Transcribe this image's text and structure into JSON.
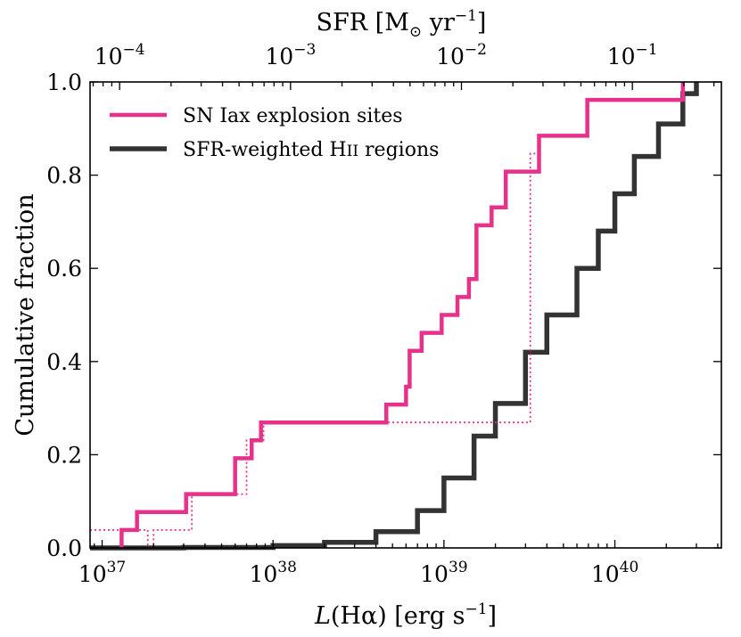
{
  "chart_data": {
    "type": "line",
    "subtype": "cumulative-step",
    "xscale": "log",
    "xlim": [
      8.5e+36,
      4.2e+40
    ],
    "ylim": [
      0.0,
      1.0
    ],
    "xlabel": "L(Hα) [erg s⁻¹]",
    "xlabel_parts": {
      "italic": "L",
      "rest": "(Hα) [erg s",
      "sup": "−1",
      "close": "]"
    },
    "ylabel": "Cumulative fraction",
    "top_xlabel": "SFR [M⊙ yr⁻¹]",
    "top_xlabel_parts": {
      "base": "SFR [M",
      "sub": "⊙",
      "mid": " yr",
      "sup": "−1",
      "close": "]"
    },
    "x_ticks": [
      {
        "value": 1e+37,
        "base": "10",
        "exp": "37"
      },
      {
        "value": 1e+38,
        "base": "10",
        "exp": "38"
      },
      {
        "value": 1e+39,
        "base": "10",
        "exp": "39"
      },
      {
        "value": 1e+40,
        "base": "10",
        "exp": "40"
      }
    ],
    "top_ticks": [
      {
        "value": 0.0001,
        "L_equiv": 1.266e+37,
        "base": "10",
        "exp": "−4"
      },
      {
        "value": 0.001,
        "L_equiv": 1.266e+38,
        "base": "10",
        "exp": "−3"
      },
      {
        "value": 0.01,
        "L_equiv": 1.266e+39,
        "base": "10",
        "exp": "−2"
      },
      {
        "value": 0.1,
        "L_equiv": 1.266e+40,
        "base": "10",
        "exp": "−1"
      }
    ],
    "y_ticks": [
      "0.0",
      "0.2",
      "0.4",
      "0.6",
      "0.8",
      "1.0"
    ],
    "legend": {
      "position": "top-left",
      "entries": [
        "SN Iax explosion sites",
        "SFR-weighted HII regions"
      ],
      "entry_parts": [
        {
          "text": "SN Iax explosion sites"
        },
        {
          "text": "SFR-weighted H",
          "smallcaps": "II",
          "tail": " regions"
        }
      ]
    },
    "series": [
      {
        "name": "SN Iax explosion sites",
        "color": "#e8318a",
        "style": "step-solid",
        "x": [
          1.3e+37,
          1.6e+37,
          3.1e+37,
          6e+37,
          7.5e+37,
          8.5e+37,
          9.1e+37,
          4.6e+38,
          6e+38,
          6.3e+38,
          7.4e+38,
          9.7e+38,
          1.2e+39,
          1.4e+39,
          1.55e+39,
          1.9e+39,
          2.3e+39,
          2.9e+39,
          3.6e+39,
          6.9e+39,
          2.5e+40
        ],
        "y": [
          0.0385,
          0.0769,
          0.1154,
          0.1923,
          0.2308,
          0.2692,
          0.2692,
          0.3077,
          0.3462,
          0.4231,
          0.4615,
          0.5,
          0.5385,
          0.5769,
          0.6923,
          0.7308,
          0.8077,
          0.8077,
          0.8846,
          0.9615,
          1.0
        ]
      },
      {
        "name": "SN Iax explosion sites (alternative values)",
        "color": "#e8318a",
        "style": "step-dotted",
        "x": [
          8.5e+36,
          1.55e+37,
          1.85e+37,
          2e+37,
          2.65e+37,
          3.35e+37,
          7e+37,
          8.8e+37,
          3.2e+39,
          3.6e+39
        ],
        "y": [
          0.0385,
          0.0385,
          0.0,
          0.0385,
          0.0385,
          0.1154,
          0.2308,
          0.2692,
          0.8462,
          0.8846
        ]
      },
      {
        "name": "SFR-weighted HII regions",
        "color": "#333333",
        "style": "step-solid-thick",
        "x": [
          8.5e+36,
          3e+37,
          1e+38,
          2e+38,
          4e+38,
          7e+38,
          1e+39,
          1.5e+39,
          2e+39,
          3e+39,
          4e+39,
          6e+39,
          8e+39,
          1e+40,
          1.3e+40,
          1.8e+40,
          2.5e+40,
          3e+40
        ],
        "y": [
          0.0,
          0.001,
          0.005,
          0.012,
          0.035,
          0.08,
          0.15,
          0.24,
          0.31,
          0.42,
          0.5,
          0.6,
          0.68,
          0.76,
          0.84,
          0.91,
          0.975,
          1.0
        ]
      }
    ]
  }
}
